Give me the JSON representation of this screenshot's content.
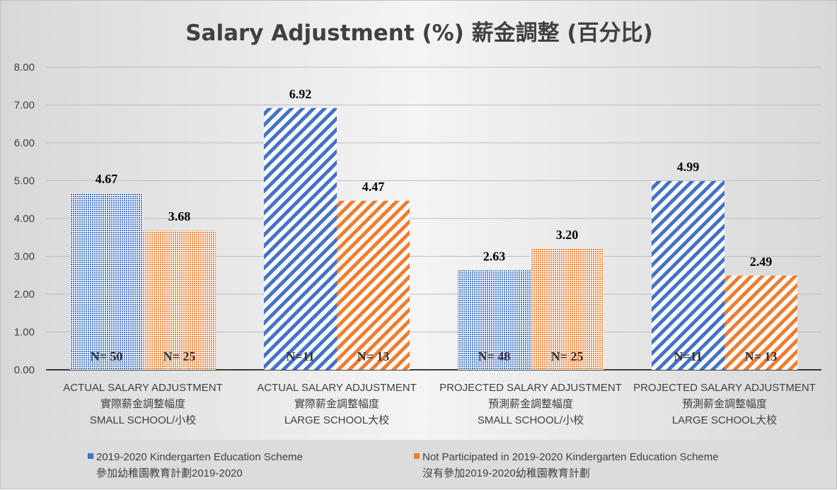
{
  "chart_data": {
    "type": "bar",
    "title": "Salary Adjustment (%) 薪金調整 (百分比)",
    "categories": [
      [
        "ACTUAL SALARY ADJUSTMENT",
        "實際薪金調整幅度",
        "SMALL SCHOOL/小校"
      ],
      [
        "ACTUAL SALARY ADJUSTMENT",
        "實際薪金調整幅度",
        "LARGE SCHOOL大校"
      ],
      [
        "PROJECTED SALARY ADJUSTMENT",
        "預測薪金調整幅度",
        "SMALL SCHOOL/小校"
      ],
      [
        "PROJECTED SALARY ADJUSTMENT",
        "預測薪金調整幅度",
        "LARGE SCHOOL大校"
      ]
    ],
    "series": [
      {
        "name": "2019-2020 Kindergarten Education Scheme 參加幼稚園教育計劃2019-2020",
        "legend_lines": [
          "2019-2020 Kindergarten Education Scheme",
          "參加幼稚園教育計劃2019-2020"
        ],
        "color": "#4472c4",
        "values": [
          4.67,
          6.92,
          2.63,
          4.99
        ],
        "value_labels": [
          "4.67",
          "6.92",
          "2.63",
          "4.99"
        ],
        "n_labels": [
          "N= 50",
          "N=11",
          "N= 48",
          "N=11"
        ]
      },
      {
        "name": "Not Participated in 2019-2020 Kindergarten Education Scheme 沒有參加2019-2020幼稚園教育計劃",
        "legend_lines": [
          "Not Participated in 2019-2020 Kindergarten Education Scheme",
          "沒有參加2019-2020幼稚園教育計劃"
        ],
        "color": "#ed7d31",
        "values": [
          3.68,
          4.47,
          3.2,
          2.49
        ],
        "value_labels": [
          "3.68",
          "4.47",
          "3.20",
          "2.49"
        ],
        "n_labels": [
          "N= 25",
          "N= 13",
          "N= 25",
          "N= 13"
        ]
      }
    ],
    "ylim": [
      0,
      8
    ],
    "yticks": [
      "0.00",
      "1.00",
      "2.00",
      "3.00",
      "4.00",
      "5.00",
      "6.00",
      "7.00",
      "8.00"
    ],
    "ytick_values": [
      0,
      1,
      2,
      3,
      4,
      5,
      6,
      7,
      8
    ],
    "grid": true,
    "legend_position": "bottom",
    "pattern_styles": [
      "dense",
      "diagonal"
    ]
  }
}
